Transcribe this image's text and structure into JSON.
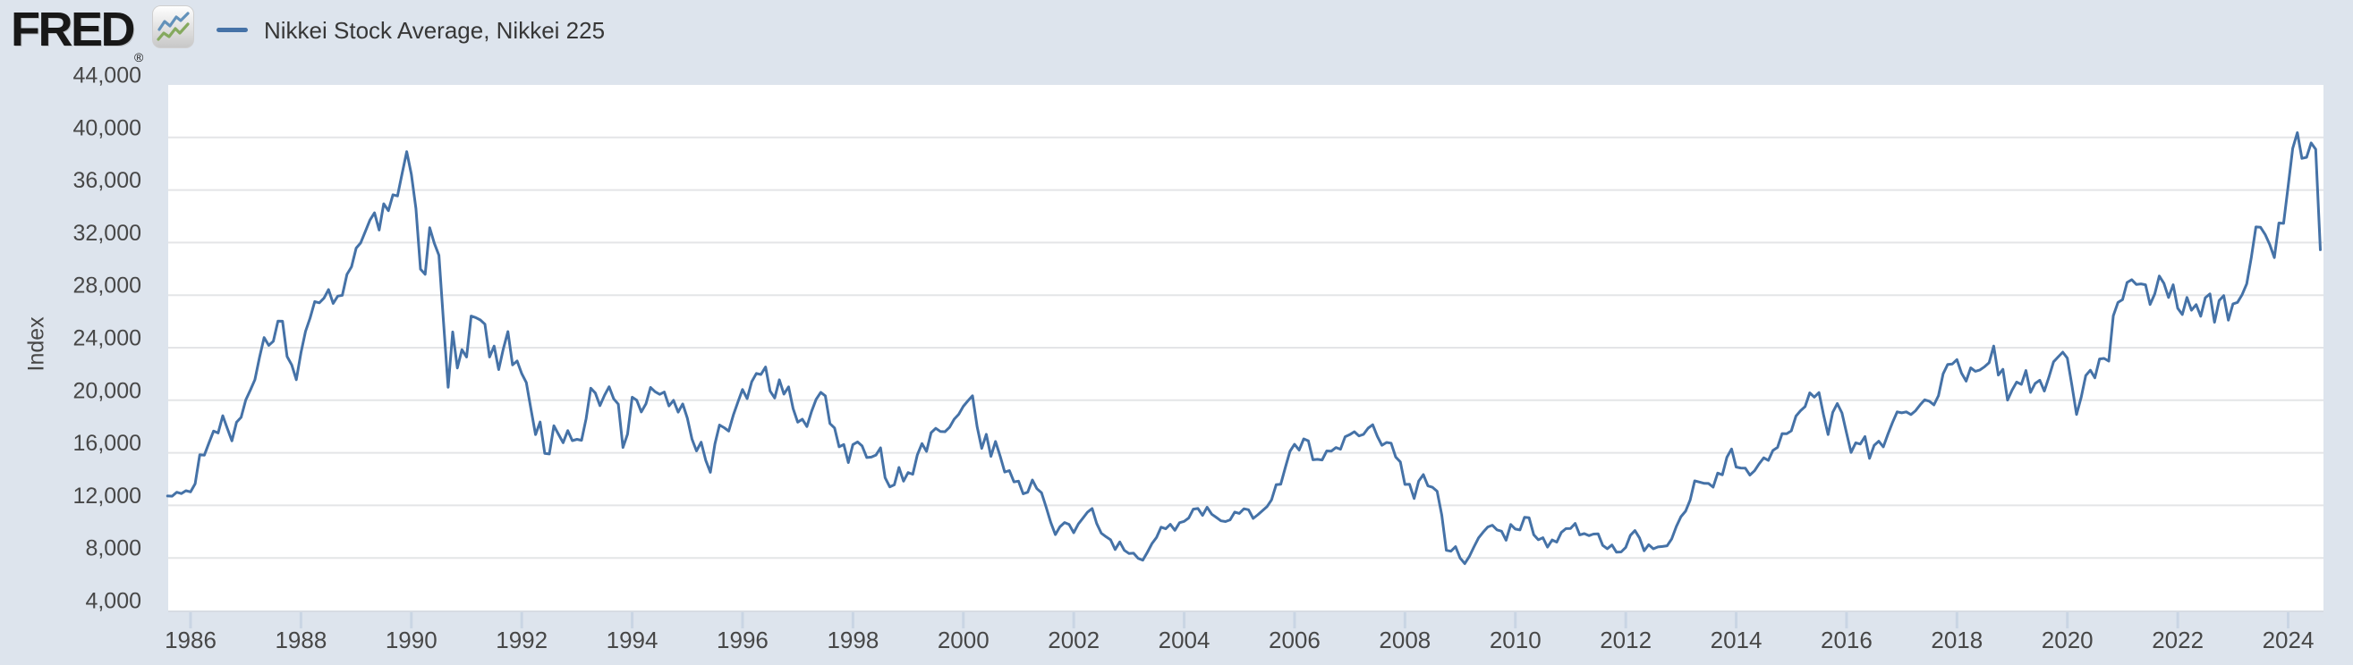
{
  "header": {
    "logo_text": "FRED",
    "registered_mark": "®",
    "logo_icon": "line-chart-icon",
    "legend": {
      "label": "Nikkei Stock Average, Nikkei 225"
    }
  },
  "colors": {
    "background": "#dde4ed",
    "plot_background": "#ffffff",
    "gridline": "#e4e5e7",
    "axis_line": "#d7dce3",
    "tick_mark": "#c9d5e4",
    "axis_text": "#474747",
    "series_line": "#4572a7",
    "legend_text": "#373737",
    "logo_icon_blue": "#6291ba",
    "logo_icon_green": "#85a95e"
  },
  "axis": {
    "y_title": "Index",
    "y_tick_values": [
      44000,
      40000,
      36000,
      32000,
      28000,
      24000,
      20000,
      16000,
      12000,
      8000,
      4000
    ],
    "x_tick_years": [
      1986,
      1988,
      1990,
      1992,
      1994,
      1996,
      1998,
      2000,
      2002,
      2004,
      2006,
      2008,
      2010,
      2012,
      2014,
      2016,
      2018,
      2020,
      2022,
      2024
    ]
  },
  "chart_data": {
    "type": "line",
    "title": "Nikkei Stock Average, Nikkei 225",
    "xlabel": "",
    "ylabel": "Index",
    "x_domain": [
      1985.595,
      2024.64
    ],
    "ylim": [
      4000,
      44000
    ],
    "y_tick_step": 4000,
    "x_tick_step_years": 2,
    "grid": "horizontal",
    "legend_position": "top-left",
    "series": [
      {
        "name": "Nikkei Stock Average, Nikkei 225",
        "color": "#4572a7",
        "x_start_year": 1985.583,
        "x_step_years": 0.0833333,
        "values": [
          12716,
          12700,
          13000,
          12900,
          13113,
          13024,
          13640,
          15860,
          15826,
          16739,
          17654,
          17510,
          18821,
          17853,
          16911,
          18325,
          18701,
          20023,
          20766,
          21567,
          23275,
          24772,
          24176,
          24488,
          26029,
          26011,
          23328,
          22687,
          21564,
          23622,
          25243,
          26260,
          27509,
          27417,
          27769,
          28419,
          27366,
          27924,
          27983,
          29579,
          30159,
          31581,
          31986,
          32839,
          33713,
          34267,
          32949,
          34954,
          34431,
          35637,
          35549,
          37269,
          38916,
          37189,
          34592,
          29980,
          29585,
          33131,
          31940,
          31036,
          25978,
          20984,
          25194,
          22455,
          23849,
          23293,
          26409,
          26292,
          26111,
          25790,
          23291,
          24121,
          22336,
          23916,
          25222,
          22687,
          22984,
          22023,
          21339,
          19346,
          17391,
          18348,
          15952,
          15910,
          18061,
          17399,
          16767,
          17684,
          16925,
          17024,
          16953,
          18591,
          20919,
          20552,
          19590,
          20380,
          21027,
          20105,
          19703,
          16406,
          17417,
          20229,
          19997,
          19112,
          19725,
          20974,
          20644,
          20449,
          20629,
          19564,
          19990,
          19098,
          19723,
          18650,
          17053,
          16140,
          16807,
          15437,
          14517,
          16677,
          18117,
          17913,
          17655,
          18880,
          19868,
          20813,
          20125,
          21407,
          22041,
          21956,
          22531,
          20693,
          20167,
          21556,
          20467,
          21021,
          19361,
          18330,
          18557,
          18003,
          19151,
          20069,
          20605,
          20332,
          18229,
          17888,
          16459,
          16636,
          15259,
          16628,
          16832,
          16527,
          15641,
          15671,
          15830,
          16379,
          14108,
          13406,
          13565,
          14884,
          13842,
          14499,
          14368,
          15837,
          16702,
          16112,
          17530,
          17861,
          17629,
          17605,
          17942,
          18558,
          18934,
          19539,
          19959,
          20337,
          17974,
          16332,
          17411,
          15727,
          16861,
          15747,
          14540,
          14649,
          13786,
          13844,
          12884,
          12999,
          13934,
          13262,
          12969,
          11861,
          10714,
          9775,
          10366,
          10697,
          10543,
          9919,
          10588,
          11025,
          11493,
          11764,
          10622,
          9878,
          9619,
          9383,
          8640,
          9216,
          8579,
          8339,
          8363,
          7973,
          7831,
          8425,
          9083,
          9563,
          10343,
          10219,
          10559,
          10100,
          10677,
          10784,
          11041,
          11715,
          11762,
          11236,
          11859,
          11326,
          11082,
          10824,
          10772,
          10900,
          11489,
          11387,
          11740,
          11669,
          11009,
          11276,
          11584,
          11900,
          12414,
          13574,
          13606,
          14872,
          16111,
          16649,
          16205,
          17060,
          16906,
          15467,
          15505,
          15457,
          16141,
          16128,
          16399,
          16274,
          17226,
          17383,
          17604,
          17288,
          17400,
          17876,
          18138,
          17249,
          16569,
          16786,
          16738,
          15681,
          15308,
          13592,
          13603,
          12526,
          13850,
          14339,
          13481,
          13377,
          13073,
          11260,
          8577,
          8512,
          8860,
          7994,
          7568,
          8110,
          8828,
          9523,
          9958,
          10357,
          10493,
          10133,
          10035,
          9346,
          10546,
          10198,
          10126,
          11090,
          11057,
          9769,
          9383,
          9537,
          8824,
          9369,
          9202,
          9937,
          10229,
          10237,
          10624,
          9755,
          9850,
          9694,
          9816,
          9833,
          8955,
          8700,
          8988,
          8435,
          8455,
          8803,
          9723,
          10084,
          9521,
          8543,
          9007,
          8695,
          8840,
          8870,
          8928,
          9446,
          10395,
          11139,
          11559,
          12398,
          13861,
          13775,
          13677,
          13668,
          13389,
          14456,
          14328,
          15662,
          16291,
          14915,
          14841,
          14828,
          14304,
          14632,
          15162,
          15621,
          15425,
          16174,
          16414,
          17460,
          17451,
          17674,
          18798,
          19207,
          19520,
          20563,
          20236,
          20585,
          18890,
          17388,
          19083,
          19747,
          19034,
          17518,
          16027,
          16759,
          16666,
          17235,
          15576,
          16569,
          16887,
          16450,
          17425,
          18308,
          19114,
          19041,
          19119,
          18909,
          19197,
          19651,
          20033,
          19925,
          19646,
          20356,
          22012,
          22725,
          22765,
          23098,
          22068,
          21454,
          22468,
          22202,
          22305,
          22554,
          22865,
          24120,
          21920,
          22351,
          20015,
          20773,
          21385,
          21206,
          22259,
          20601,
          21276,
          21522,
          20704,
          21756,
          22927,
          23294,
          23657,
          23205,
          21143,
          18917,
          20194,
          21878,
          22288,
          21710,
          23140,
          23185,
          22977,
          26434,
          27444,
          27663,
          28966,
          29179,
          28813,
          28860,
          28792,
          27284,
          28090,
          29453,
          28893,
          27822,
          28792,
          27002,
          26527,
          27821,
          26848,
          27280,
          26393,
          27802,
          28092,
          25937,
          27587,
          27969,
          26095,
          27327,
          27446,
          28041,
          28856,
          30888,
          33189,
          33172,
          32619,
          31858,
          30859,
          33487,
          33464,
          36287,
          39166,
          40369,
          38406,
          38488,
          39583,
          39102,
          31458
        ]
      }
    ]
  }
}
